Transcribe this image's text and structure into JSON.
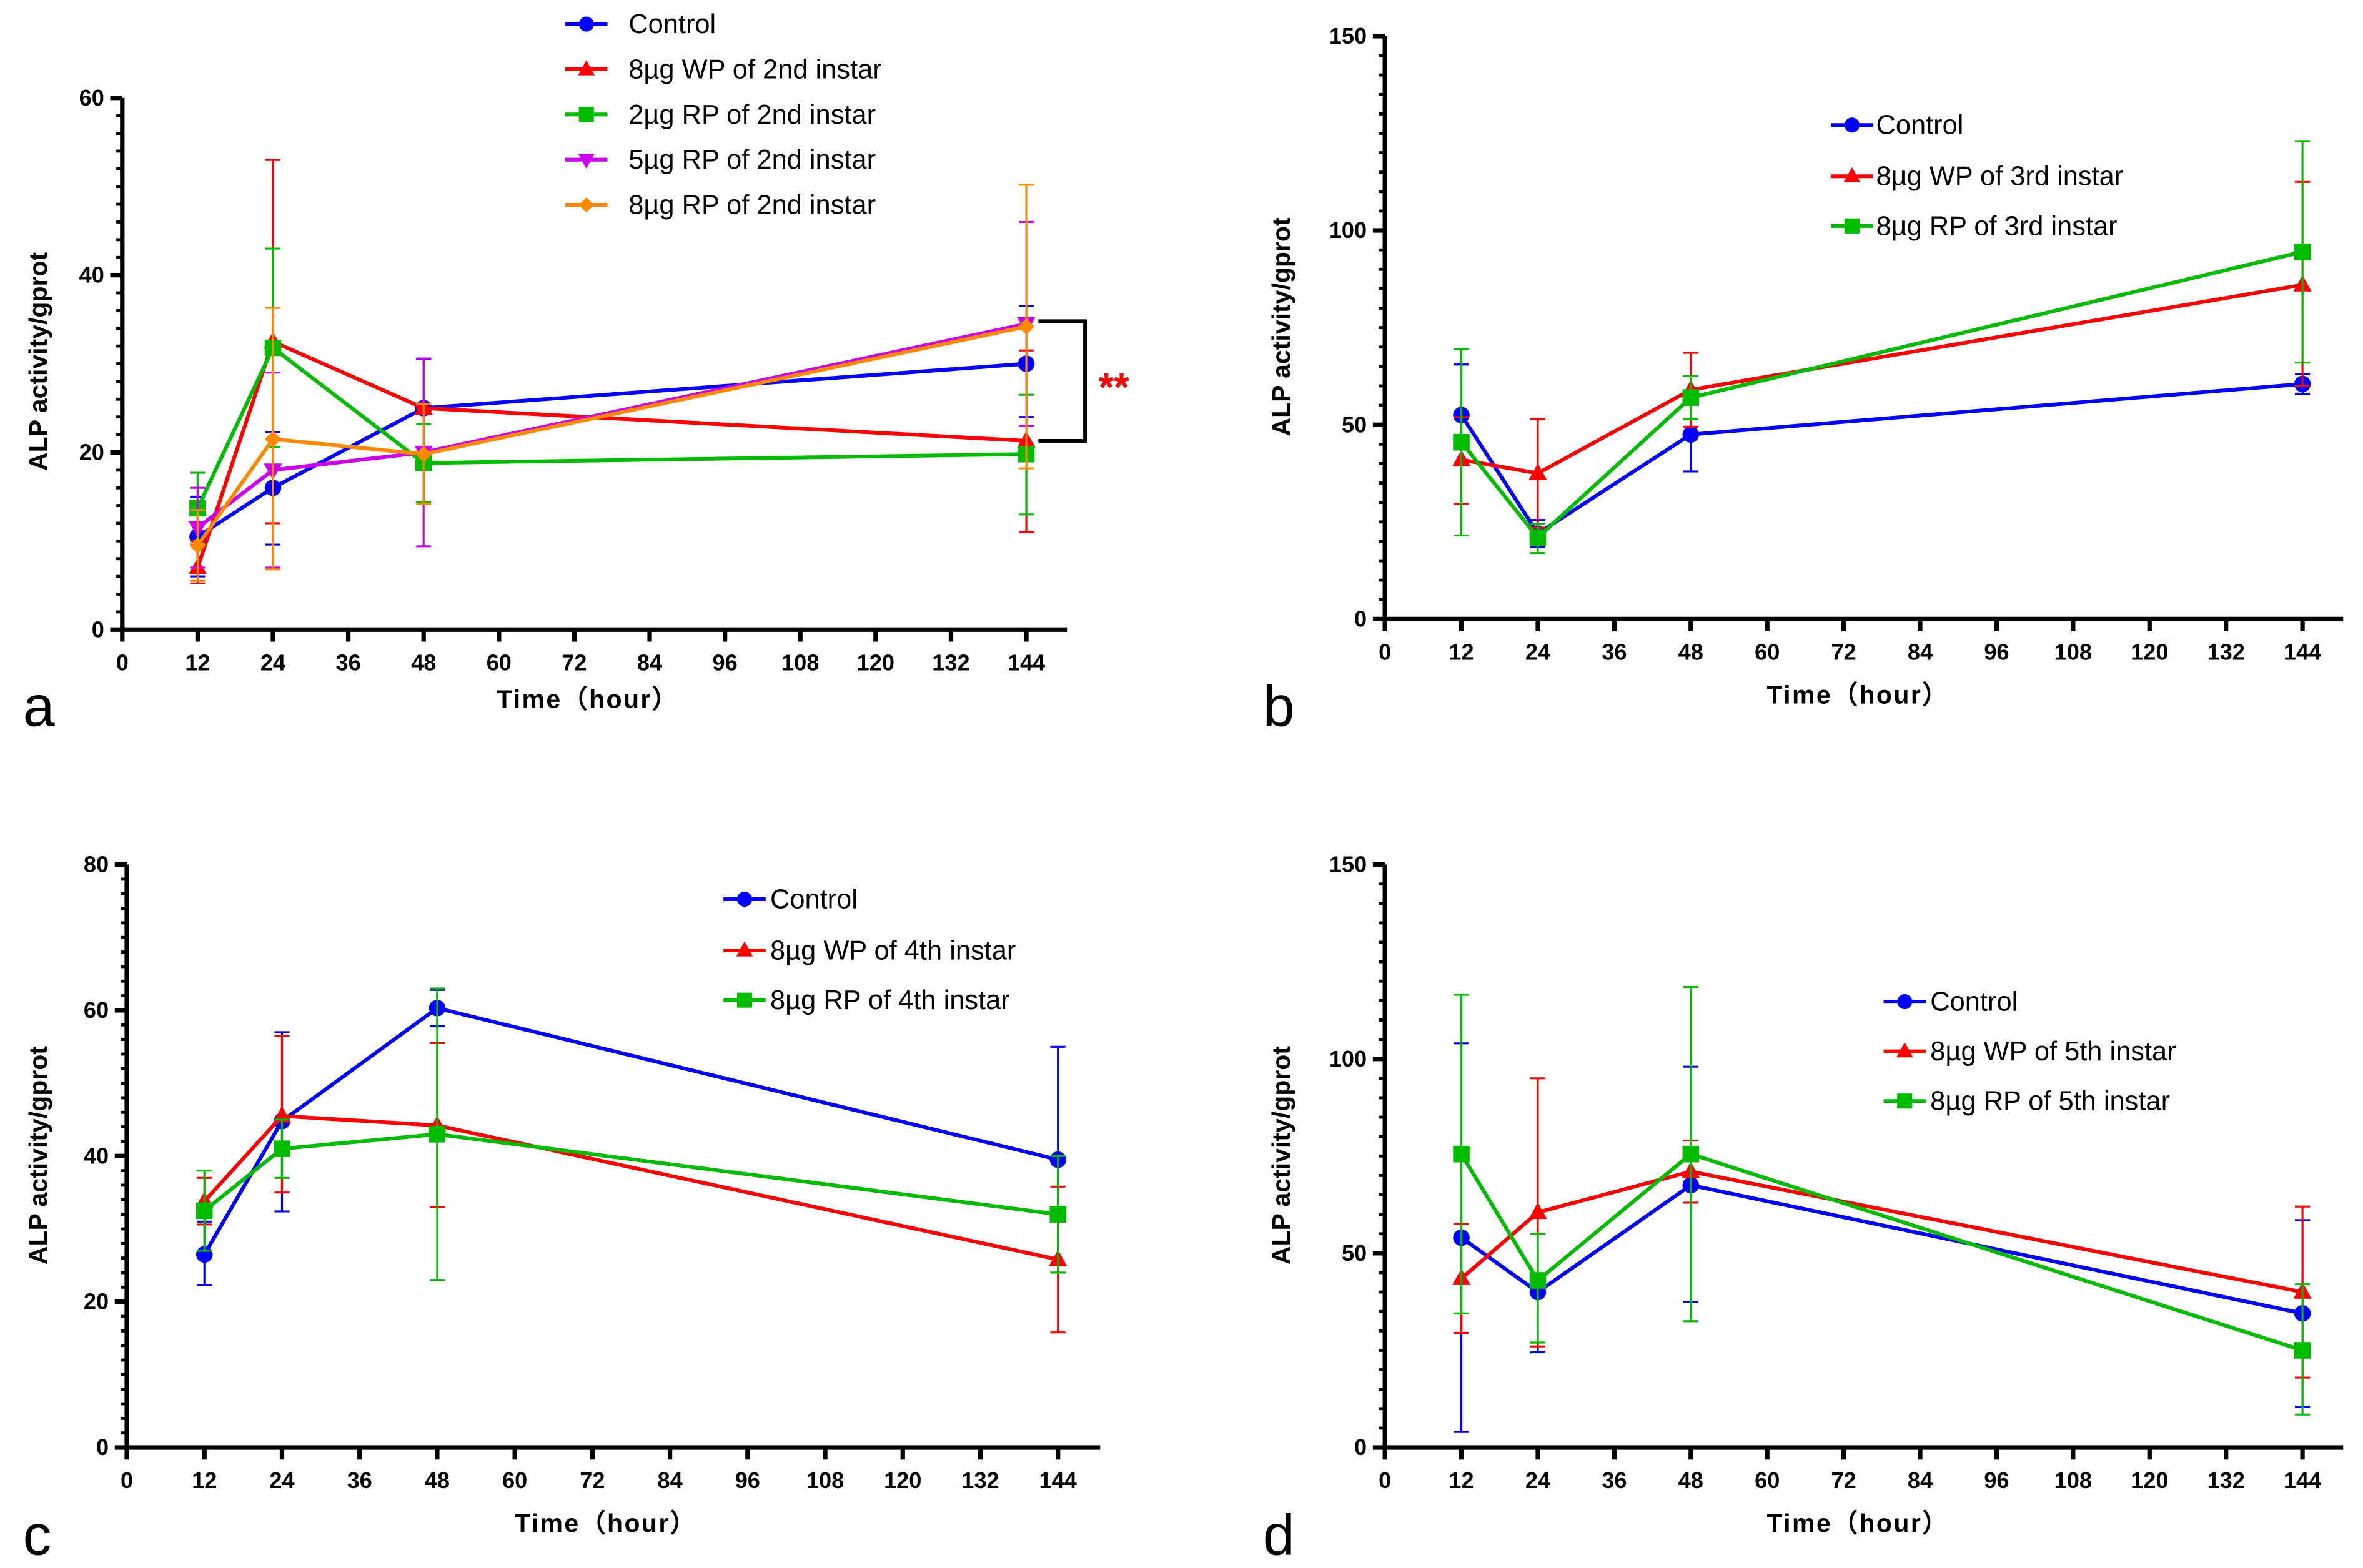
{
  "chart_data": [
    {
      "type": "line",
      "panel_label": "a",
      "xlabel": "Time（hour）",
      "ylabel": "ALP activity/gprot",
      "xlim": [
        0,
        150
      ],
      "ylim": [
        0,
        60
      ],
      "xticks": [
        0,
        12,
        24,
        36,
        48,
        60,
        72,
        84,
        96,
        108,
        120,
        132,
        144
      ],
      "yticks": [
        0,
        20,
        40,
        60
      ],
      "grid": false,
      "legend": "top-center",
      "annotation": {
        "text": "**",
        "color": "#ff0000",
        "between": [
          "8µg WP of 2nd instar",
          "5µg RP of 2nd instar"
        ],
        "at_x": 144
      },
      "series": [
        {
          "name": "Control",
          "color": "#0000ff",
          "marker": "circle",
          "x": [
            12,
            24,
            48,
            144
          ],
          "y": [
            10.5,
            16,
            25,
            30
          ],
          "err_upper": [
            15,
            22.3,
            30.5,
            36.5
          ],
          "err_lower": [
            6,
            9.6,
            19.5,
            24
          ]
        },
        {
          "name": "8µg WP of 2nd instar",
          "color": "#ff0000",
          "marker": "triangle-up",
          "x": [
            12,
            24,
            48,
            144
          ],
          "y": [
            7,
            32.5,
            25,
            21.3
          ],
          "err_upper": [
            10,
            53,
            25,
            31.5
          ],
          "err_lower": [
            5.2,
            12,
            25,
            11
          ]
        },
        {
          "name": "2µg RP of 2nd instar",
          "color": "#00bb00",
          "marker": "square",
          "x": [
            12,
            24,
            48,
            144
          ],
          "y": [
            13.7,
            31.8,
            18.8,
            19.8
          ],
          "err_upper": [
            17.7,
            43,
            23.2,
            26.5
          ],
          "err_lower": [
            9.7,
            20.6,
            14.4,
            13
          ]
        },
        {
          "name": "5µg RP of 2nd instar",
          "color": "#cc00ee",
          "marker": "triangle-down",
          "x": [
            12,
            24,
            48,
            144
          ],
          "y": [
            11.5,
            18,
            20,
            34.5
          ],
          "err_upper": [
            16,
            29,
            30.6,
            46
          ],
          "err_lower": [
            7,
            7,
            9.4,
            23
          ]
        },
        {
          "name": "8µg RP of 2nd instar",
          "color": "#ff8800",
          "marker": "diamond",
          "x": [
            12,
            24,
            48,
            144
          ],
          "y": [
            9.5,
            21.5,
            19.8,
            34.2
          ],
          "err_upper": [
            13.5,
            36.3,
            25.5,
            50.2
          ],
          "err_lower": [
            5.5,
            6.8,
            14.2,
            18.2
          ]
        }
      ]
    },
    {
      "type": "line",
      "panel_label": "b",
      "xlabel": "Time（hour）",
      "ylabel": "ALP activity/gprot",
      "xlim": [
        0,
        150
      ],
      "ylim": [
        0,
        150
      ],
      "xticks": [
        0,
        12,
        24,
        36,
        48,
        60,
        72,
        84,
        96,
        108,
        120,
        132,
        144
      ],
      "yticks": [
        0,
        50,
        100,
        150
      ],
      "grid": false,
      "legend": "top-right",
      "series": [
        {
          "name": "Control",
          "color": "#0000ff",
          "marker": "circle",
          "x": [
            12,
            24,
            48,
            144
          ],
          "y": [
            52.5,
            22,
            47.5,
            60.5
          ],
          "err_upper": [
            65.5,
            25.5,
            57,
            63
          ],
          "err_lower": [
            39.5,
            18.5,
            38,
            58
          ]
        },
        {
          "name": "8µg WP of 3rd instar",
          "color": "#ff0000",
          "marker": "triangle-up",
          "x": [
            12,
            24,
            48,
            144
          ],
          "y": [
            41,
            37.5,
            59,
            86
          ],
          "err_upper": [
            52,
            51.5,
            68.5,
            112.5
          ],
          "err_lower": [
            29.7,
            23.5,
            49.5,
            60
          ]
        },
        {
          "name": "8µg RP of 3rd instar",
          "color": "#00bb00",
          "marker": "square",
          "x": [
            12,
            24,
            48,
            144
          ],
          "y": [
            45.5,
            21,
            57,
            94.5
          ],
          "err_upper": [
            69.5,
            24.5,
            62.5,
            123
          ],
          "err_lower": [
            21.5,
            17,
            51.5,
            66
          ]
        }
      ]
    },
    {
      "type": "line",
      "panel_label": "c",
      "xlabel": "Time（hour）",
      "ylabel": "ALP activity/gprot",
      "xlim": [
        0,
        150
      ],
      "ylim": [
        0,
        80
      ],
      "xticks": [
        0,
        12,
        24,
        36,
        48,
        60,
        72,
        84,
        96,
        108,
        120,
        132,
        144
      ],
      "yticks": [
        0,
        20,
        40,
        60,
        80
      ],
      "grid": false,
      "legend": "top-right",
      "series": [
        {
          "name": "Control",
          "color": "#0000ff",
          "marker": "circle",
          "x": [
            12,
            24,
            48,
            144
          ],
          "y": [
            26.5,
            44.8,
            60.3,
            39.5
          ],
          "err_upper": [
            31,
            57,
            62.8,
            55
          ],
          "err_lower": [
            22.3,
            32.4,
            57.8,
            24
          ]
        },
        {
          "name": "8µg WP of 4th instar",
          "color": "#ff0000",
          "marker": "triangle-up",
          "x": [
            12,
            24,
            48,
            144
          ],
          "y": [
            33.8,
            45.5,
            44.2,
            25.8
          ],
          "err_upper": [
            37,
            56.5,
            55.5,
            35.8
          ],
          "err_lower": [
            30.6,
            35,
            33,
            15.8
          ]
        },
        {
          "name": "8µg RP of 4th instar",
          "color": "#00bb00",
          "marker": "square",
          "x": [
            12,
            24,
            48,
            144
          ],
          "y": [
            32.5,
            41,
            43,
            32
          ],
          "err_upper": [
            38,
            45,
            63,
            40
          ],
          "err_lower": [
            27,
            37,
            23,
            24
          ]
        }
      ]
    },
    {
      "type": "line",
      "panel_label": "d",
      "xlabel": "Time（hour）",
      "ylabel": "ALP activity/gprot",
      "xlim": [
        0,
        150
      ],
      "ylim": [
        0,
        150
      ],
      "xticks": [
        0,
        12,
        24,
        36,
        48,
        60,
        72,
        84,
        96,
        108,
        120,
        132,
        144
      ],
      "yticks": [
        0,
        50,
        100,
        150
      ],
      "grid": false,
      "legend": "top-right",
      "series": [
        {
          "name": "Control",
          "color": "#0000ff",
          "marker": "circle",
          "x": [
            12,
            24,
            48,
            144
          ],
          "y": [
            54,
            40,
            67.5,
            34.5
          ],
          "err_upper": [
            104,
            55,
            98,
            58.5
          ],
          "err_lower": [
            4,
            24.5,
            37.5,
            10.5
          ]
        },
        {
          "name": "8µg WP of 5th instar",
          "color": "#ff0000",
          "marker": "triangle-up",
          "x": [
            12,
            24,
            48,
            144
          ],
          "y": [
            43.5,
            60.5,
            71,
            40
          ],
          "err_upper": [
            57.5,
            95,
            79,
            62
          ],
          "err_lower": [
            29.5,
            26,
            63,
            18
          ]
        },
        {
          "name": "8µg RP of 5th instar",
          "color": "#00bb00",
          "marker": "square",
          "x": [
            12,
            24,
            48,
            144
          ],
          "y": [
            75.5,
            43,
            75.5,
            25
          ],
          "err_upper": [
            116.5,
            55,
            118.5,
            42
          ],
          "err_lower": [
            34.5,
            27,
            32.5,
            8.5
          ]
        }
      ]
    }
  ]
}
